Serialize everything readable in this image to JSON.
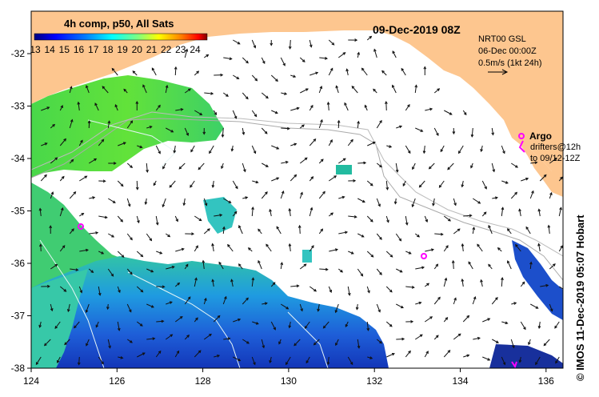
{
  "title": "09-Dec-2019 08Z",
  "colorbar": {
    "label": "4h comp, p50, All Sats",
    "ticks": [
      "13",
      "14",
      "15",
      "16",
      "17",
      "18",
      "19",
      "20",
      "21",
      "22",
      "23",
      "24"
    ],
    "colors": [
      "#00007f",
      "#0000ff",
      "#007fff",
      "#00ffff",
      "#7fff7f",
      "#ffff00",
      "#ff7f00",
      "#ff0000",
      "#7f0000"
    ]
  },
  "legend": {
    "line1": "NRT00 GSL",
    "line2": "06-Dec 00:00Z",
    "line3": "0.5m/s (1kt 24h)"
  },
  "argo": {
    "label": "Argo",
    "drifters1": "drifters@12h",
    "drifters2": "to 09/12-12Z"
  },
  "credit": "© IMOS 11-Dec-2019 05:07 Hobart",
  "axes": {
    "x_ticks": [
      "124",
      "126",
      "128",
      "130",
      "132",
      "134",
      "136"
    ],
    "y_ticks": [
      "-32",
      "-33",
      "-34",
      "-35",
      "-36",
      "-37",
      "-38"
    ]
  },
  "colors": {
    "land": "#fdc68f",
    "frame": "#000000",
    "argo": "#ff00ff",
    "contour": "#aaaaaa"
  }
}
